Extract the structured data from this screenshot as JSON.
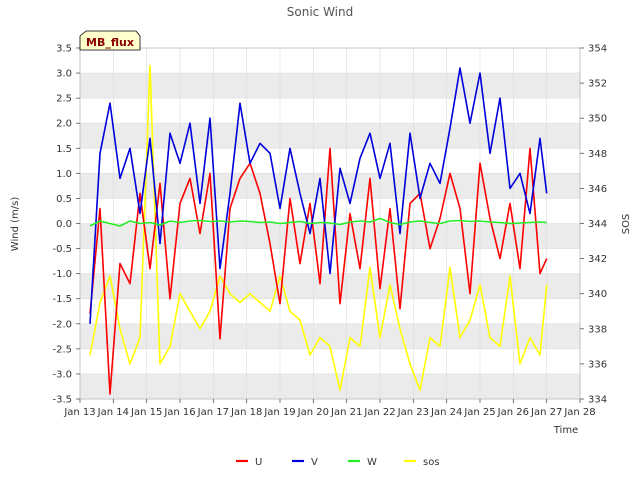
{
  "figure": {
    "title": "Sonic Wind",
    "badge_label": "MB_flux"
  },
  "colors": {
    "U": "#ff0000",
    "V": "#0000dd",
    "W": "#22ee22",
    "sos": "#ffff00",
    "band": "#ebebeb",
    "badge_fill": "#ffffcc",
    "badge_text": "#880000"
  },
  "chart_data": {
    "type": "line",
    "title": "Sonic Wind",
    "xlabel": "Time",
    "ylabel": "Wind (m/s)",
    "y2label": "SOS",
    "x_ticks": [
      "Jan 13",
      "Jan 14",
      "Jan 15",
      "Jan 16",
      "Jan 17",
      "Jan 18",
      "Jan 19",
      "Jan 20",
      "Jan 21",
      "Jan 22",
      "Jan 23",
      "Jan 24",
      "Jan 25",
      "Jan 26",
      "Jan 27",
      "Jan 28"
    ],
    "xlim": [
      13,
      28
    ],
    "ylim": [
      -3.5,
      3.5
    ],
    "y_ticks": [
      "-3.5",
      "-3.0",
      "-2.5",
      "-2.0",
      "-1.5",
      "-1.0",
      "-0.5",
      "0.0",
      "0.5",
      "1.0",
      "1.5",
      "2.0",
      "2.5",
      "3.0",
      "3.5"
    ],
    "y2lim": [
      334,
      354
    ],
    "y2_ticks": [
      "334",
      "336",
      "338",
      "340",
      "342",
      "344",
      "346",
      "348",
      "350",
      "352",
      "354"
    ],
    "grid": true,
    "legend_position": "bottom-center",
    "x_day_values": [
      13.3,
      13.6,
      13.9,
      14.2,
      14.5,
      14.8,
      15.1,
      15.4,
      15.7,
      16.0,
      16.3,
      16.6,
      16.9,
      17.2,
      17.5,
      17.8,
      18.1,
      18.4,
      18.7,
      19.0,
      19.3,
      19.6,
      19.9,
      20.2,
      20.5,
      20.8,
      21.1,
      21.4,
      21.7,
      22.0,
      22.3,
      22.6,
      22.9,
      23.2,
      23.5,
      23.8,
      24.1,
      24.4,
      24.7,
      25.0,
      25.3,
      25.6,
      25.9,
      26.2,
      26.5,
      26.8,
      27.0
    ],
    "series": [
      {
        "name": "U",
        "axis": "left",
        "values": [
          -1.8,
          0.3,
          -3.4,
          -0.8,
          -1.2,
          0.6,
          -0.9,
          0.8,
          -1.5,
          0.4,
          0.9,
          -0.2,
          1.0,
          -2.3,
          0.3,
          0.9,
          1.2,
          0.6,
          -0.4,
          -1.6,
          0.5,
          -0.8,
          0.4,
          -1.2,
          1.5,
          -1.6,
          0.2,
          -0.9,
          0.9,
          -1.3,
          0.3,
          -1.7,
          0.4,
          0.6,
          -0.5,
          0.1,
          1.0,
          0.3,
          -1.4,
          1.2,
          0.1,
          -0.7,
          0.4,
          -0.9,
          1.5,
          -1.0,
          -0.7
        ]
      },
      {
        "name": "V",
        "axis": "left",
        "values": [
          -2.0,
          1.4,
          2.4,
          0.9,
          1.5,
          0.2,
          1.7,
          -0.4,
          1.8,
          1.2,
          2.0,
          0.4,
          2.1,
          -0.9,
          0.6,
          2.4,
          1.2,
          1.6,
          1.4,
          0.3,
          1.5,
          0.6,
          -0.2,
          0.9,
          -1.0,
          1.1,
          0.4,
          1.3,
          1.8,
          0.9,
          1.6,
          -0.2,
          1.8,
          0.5,
          1.2,
          0.8,
          1.9,
          3.1,
          2.0,
          3.0,
          1.4,
          2.5,
          0.7,
          1.0,
          0.2,
          1.7,
          0.6
        ]
      },
      {
        "name": "W",
        "axis": "left",
        "values": [
          -0.05,
          0.05,
          0.0,
          -0.05,
          0.05,
          0.0,
          0.02,
          -0.03,
          0.05,
          0.02,
          0.05,
          0.06,
          0.04,
          0.05,
          0.03,
          0.05,
          0.04,
          0.02,
          0.03,
          0.0,
          0.02,
          0.04,
          0.0,
          0.02,
          0.01,
          -0.02,
          0.03,
          0.05,
          0.03,
          0.1,
          0.02,
          -0.02,
          0.03,
          0.05,
          0.02,
          0.0,
          0.05,
          0.06,
          0.04,
          0.05,
          0.03,
          0.02,
          0.0,
          0.01,
          0.02,
          0.03,
          0.02
        ]
      },
      {
        "name": "sos",
        "axis": "right",
        "values": [
          336.5,
          339.5,
          341.0,
          338.0,
          336.0,
          337.5,
          353.0,
          336.0,
          337.0,
          340.0,
          339.0,
          338.0,
          339.0,
          341.0,
          340.0,
          339.5,
          340.0,
          339.5,
          339.0,
          341.0,
          339.0,
          338.5,
          336.5,
          337.5,
          337.0,
          334.5,
          337.5,
          337.0,
          341.5,
          337.5,
          340.5,
          338.0,
          336.0,
          334.5,
          337.5,
          337.0,
          341.5,
          337.5,
          338.5,
          340.5,
          337.5,
          337.0,
          341.0,
          336.0,
          337.5,
          336.5,
          340.5
        ]
      }
    ]
  },
  "legend": [
    {
      "key": "U",
      "label": "U"
    },
    {
      "key": "V",
      "label": "V"
    },
    {
      "key": "W",
      "label": "W"
    },
    {
      "key": "sos",
      "label": "sos"
    }
  ]
}
